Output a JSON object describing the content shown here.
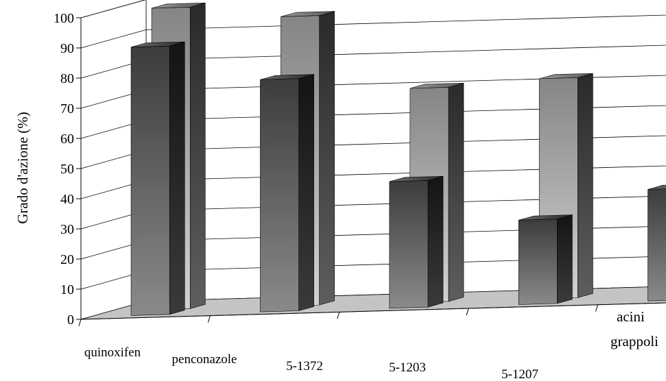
{
  "chart_data": {
    "type": "bar",
    "ylabel": "Grado d'azione (%)",
    "ylim": [
      0,
      100
    ],
    "yticks": [
      "0",
      "10",
      "20",
      "30",
      "40",
      "50",
      "60",
      "70",
      "80",
      "90",
      "100"
    ],
    "grid": true,
    "categories": [
      "quinoxifen",
      "penconazole",
      "5-1372",
      "5-1203",
      "5-1207"
    ],
    "series": [
      {
        "name": "grappoli",
        "values": [
          89,
          77,
          42,
          28,
          37
        ]
      },
      {
        "name": "acini",
        "values": [
          100,
          96,
          71,
          73,
          70
        ]
      }
    ],
    "colors": {
      "grappoli_face_light": "#8a8a8a",
      "grappoli_face_dark": "#3c3c3c",
      "grappoli_side": "#1a1a1a",
      "acini_face_light": "#d2d2d2",
      "acini_face_dark": "#858585",
      "acini_side": "#3a3a3a",
      "floor": "#c4c4c4"
    }
  }
}
